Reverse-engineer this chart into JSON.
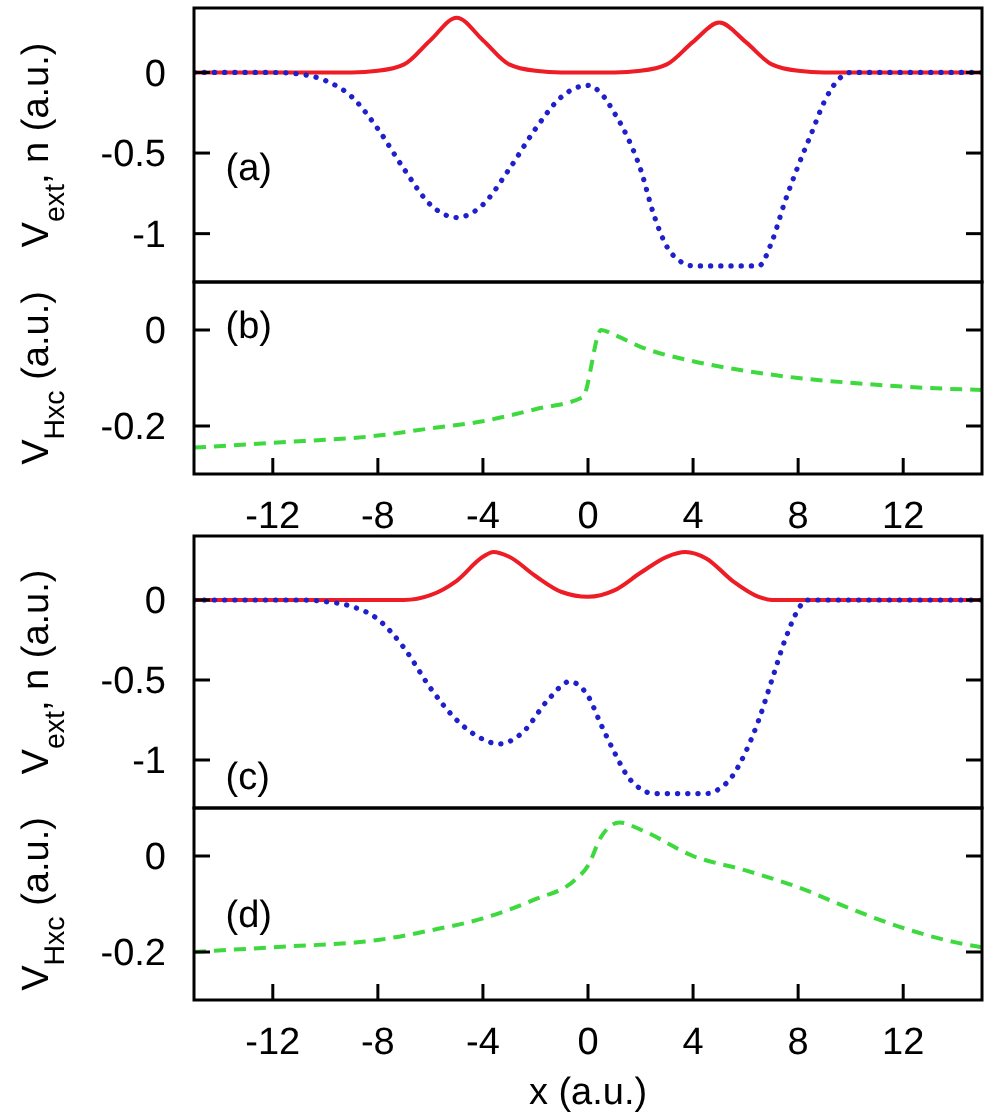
{
  "chart_data": [
    {
      "type": "line",
      "ylabel": "V$_{ext}$, n (a.u.)",
      "annotations": [
        "(a)"
      ],
      "xlim": [
        -15,
        15
      ],
      "ylim": [
        -1.3,
        0.4
      ],
      "yticks": [
        0,
        -0.5,
        -1
      ],
      "tick_labels": "y",
      "series": [
        {
          "color": "#ee1c25",
          "line_style": "solid",
          "x": [
            -15,
            -9,
            -8,
            -7,
            -6,
            -5,
            -4,
            -3,
            -2,
            -1,
            1,
            2,
            3,
            4,
            5,
            6,
            7,
            8,
            9,
            15
          ],
          "values": [
            0,
            0,
            0.01,
            0.05,
            0.2,
            0.34,
            0.2,
            0.05,
            0.01,
            0,
            0,
            0.01,
            0.05,
            0.19,
            0.31,
            0.19,
            0.05,
            0.01,
            0,
            0
          ]
        },
        {
          "color": "#1f1fcc",
          "line_style": "dotted",
          "x": [
            -15,
            -12,
            -11,
            -10,
            -9,
            -8,
            -7,
            -6,
            -5,
            -4,
            -3,
            -2,
            -1,
            0,
            0.5,
            1,
            1.5,
            2,
            2.5,
            3,
            3.5,
            4,
            6.5,
            7,
            7.5,
            8,
            8.5,
            9,
            9.5,
            10,
            15
          ],
          "values": [
            0,
            0,
            -0.01,
            -0.05,
            -0.15,
            -0.35,
            -0.6,
            -0.82,
            -0.9,
            -0.82,
            -0.6,
            -0.35,
            -0.15,
            -0.08,
            -0.13,
            -0.25,
            -0.4,
            -0.6,
            -0.88,
            -1.08,
            -1.17,
            -1.2,
            -1.2,
            -1.05,
            -0.8,
            -0.58,
            -0.38,
            -0.18,
            -0.05,
            0,
            0
          ]
        }
      ]
    },
    {
      "type": "line",
      "ylabel": "V$_{Hxc}$ (a.u.)",
      "annotations": [
        "(b)"
      ],
      "xlim": [
        -15,
        15
      ],
      "xticks": [
        -12,
        -8,
        -4,
        0,
        4,
        8,
        12
      ],
      "ylim": [
        -0.3,
        0.1
      ],
      "yticks": [
        0,
        -0.2
      ],
      "series": [
        {
          "color": "#3ed93e",
          "line_style": "dashed",
          "x": [
            -15,
            -12,
            -8,
            -6,
            -4,
            -2,
            -0.2,
            0.5,
            1,
            2,
            4,
            6,
            8,
            10,
            12,
            15
          ],
          "values": [
            -0.245,
            -0.235,
            -0.22,
            -0.205,
            -0.19,
            -0.165,
            -0.14,
            0,
            -0.01,
            -0.035,
            -0.065,
            -0.085,
            -0.1,
            -0.11,
            -0.118,
            -0.125
          ]
        }
      ]
    },
    {
      "type": "line",
      "ylabel": "V$_{ext}$, n (a.u.)",
      "annotations": [
        "(c)"
      ],
      "xlim": [
        -15,
        15
      ],
      "ylim": [
        -1.3,
        0.4
      ],
      "yticks": [
        0,
        -0.5,
        -1
      ],
      "tick_labels": "y",
      "series": [
        {
          "color": "#ee1c25",
          "line_style": "solid",
          "x": [
            -15,
            -7,
            -6,
            -5,
            -4,
            -3.6,
            -3,
            -2,
            -1,
            0,
            1,
            2,
            3,
            3.7,
            4.5,
            5.5,
            6.5,
            7,
            15
          ],
          "values": [
            0,
            0,
            0.03,
            0.12,
            0.27,
            0.3,
            0.27,
            0.15,
            0.05,
            0.02,
            0.06,
            0.17,
            0.27,
            0.3,
            0.26,
            0.12,
            0.02,
            0,
            0
          ]
        },
        {
          "color": "#1f1fcc",
          "line_style": "dotted",
          "x": [
            -15,
            -11,
            -10,
            -9,
            -8,
            -7,
            -6,
            -5,
            -4,
            -3.4,
            -2.5,
            -1.5,
            -0.7,
            0,
            0.5,
            1,
            1.5,
            2,
            2.5,
            4.5,
            5,
            5.5,
            6,
            6.5,
            7,
            7.5,
            8,
            8.3,
            15
          ],
          "values": [
            0,
            0,
            -0.01,
            -0.04,
            -0.12,
            -0.3,
            -0.55,
            -0.75,
            -0.87,
            -0.9,
            -0.83,
            -0.62,
            -0.51,
            -0.6,
            -0.78,
            -0.95,
            -1.1,
            -1.18,
            -1.21,
            -1.21,
            -1.18,
            -1.1,
            -0.95,
            -0.75,
            -0.5,
            -0.25,
            -0.06,
            0,
            0
          ]
        }
      ]
    },
    {
      "type": "line",
      "ylabel": "V$_{Hxc}$ (a.u.)",
      "xlabel": "x (a.u.)",
      "annotations": [
        "(d)"
      ],
      "xlim": [
        -15,
        15
      ],
      "xticks": [
        -12,
        -8,
        -4,
        0,
        4,
        8,
        12
      ],
      "ylim": [
        -0.3,
        0.1
      ],
      "yticks": [
        0,
        -0.2
      ],
      "series": [
        {
          "color": "#3ed93e",
          "line_style": "dashed",
          "x": [
            -15,
            -12,
            -8,
            -6,
            -4,
            -2,
            -0.5,
            0,
            0.5,
            1.2,
            2,
            4,
            6,
            8,
            10,
            12,
            14,
            15
          ],
          "values": [
            -0.2,
            -0.19,
            -0.175,
            -0.155,
            -0.13,
            -0.09,
            -0.05,
            -0.02,
            0.04,
            0.07,
            0.055,
            0,
            -0.03,
            -0.065,
            -0.11,
            -0.15,
            -0.18,
            -0.19
          ]
        }
      ]
    }
  ]
}
